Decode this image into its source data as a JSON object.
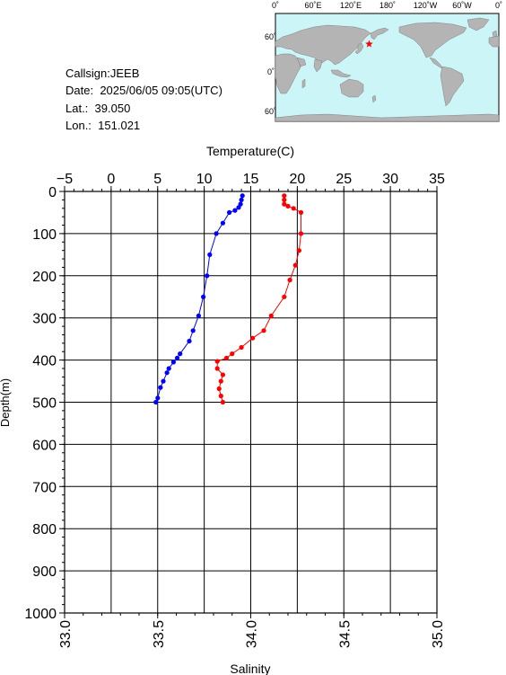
{
  "station": {
    "callsign_line": "Callsign:JEEB",
    "date_label": "Date:",
    "date_value": "2025/06/05 09:05(UTC)",
    "lat_label": "Lat.:",
    "lat_value": "39.050",
    "lon_label": "Lon.:",
    "lon_value": "151.021"
  },
  "map": {
    "lon_labels": [
      "0˚",
      "60˚E",
      "120˚E",
      "180˚",
      "120˚W",
      "60˚W",
      "0˚"
    ],
    "lat_labels": [
      "60˚N",
      "0˚",
      "60˚S"
    ],
    "ocean_color": "#ccf5f8",
    "land_color": "#b4b4b4",
    "marker": "red-star",
    "marker_color": "#ff0000",
    "marker_lat": 39.05,
    "marker_lon": 151.021
  },
  "chart_data": {
    "type": "line",
    "top_axis": {
      "label": "Temperature(C)",
      "range": [
        -5,
        35
      ],
      "ticks": [
        "−5",
        "0",
        "5",
        "10",
        "15",
        "20",
        "25",
        "30",
        "35"
      ]
    },
    "bottom_axis": {
      "label": "Salinity",
      "range": [
        33.0,
        35.0
      ],
      "ticks": [
        "33.0",
        "33.5",
        "34.0",
        "34.5",
        "35.0"
      ]
    },
    "y_axis": {
      "label": "Depth(m)",
      "range": [
        0,
        1000
      ],
      "inverted": true,
      "ticks": [
        "0",
        "100",
        "200",
        "300",
        "400",
        "500",
        "600",
        "700",
        "800",
        "900",
        "1000"
      ]
    },
    "grid": true,
    "series": [
      {
        "axis": "temperature",
        "color": "#0000ff",
        "points": [
          [
            14.1,
            10
          ],
          [
            14.0,
            20
          ],
          [
            13.9,
            30
          ],
          [
            13.7,
            38
          ],
          [
            13.3,
            45
          ],
          [
            12.7,
            50
          ],
          [
            12.0,
            75
          ],
          [
            11.3,
            100
          ],
          [
            10.6,
            150
          ],
          [
            10.3,
            200
          ],
          [
            9.9,
            250
          ],
          [
            9.4,
            295
          ],
          [
            8.8,
            330
          ],
          [
            8.4,
            355
          ],
          [
            7.4,
            385
          ],
          [
            7.1,
            395
          ],
          [
            6.7,
            405
          ],
          [
            6.2,
            420
          ],
          [
            6.0,
            430
          ],
          [
            5.6,
            450
          ],
          [
            5.3,
            465
          ],
          [
            5.0,
            490
          ],
          [
            4.8,
            500
          ]
        ]
      },
      {
        "axis": "salinity",
        "color": "#ff0000",
        "points": [
          [
            34.18,
            10
          ],
          [
            34.18,
            20
          ],
          [
            34.18,
            30
          ],
          [
            34.2,
            35
          ],
          [
            34.23,
            40
          ],
          [
            34.27,
            50
          ],
          [
            34.27,
            100
          ],
          [
            34.26,
            140
          ],
          [
            34.24,
            175
          ],
          [
            34.21,
            210
          ],
          [
            34.18,
            250
          ],
          [
            34.11,
            295
          ],
          [
            34.07,
            330
          ],
          [
            34.01,
            348
          ],
          [
            33.95,
            370
          ],
          [
            33.9,
            385
          ],
          [
            33.87,
            395
          ],
          [
            33.82,
            403
          ],
          [
            33.82,
            420
          ],
          [
            33.85,
            435
          ],
          [
            33.84,
            450
          ],
          [
            33.83,
            468
          ],
          [
            33.84,
            485
          ],
          [
            33.85,
            500
          ]
        ]
      }
    ]
  }
}
